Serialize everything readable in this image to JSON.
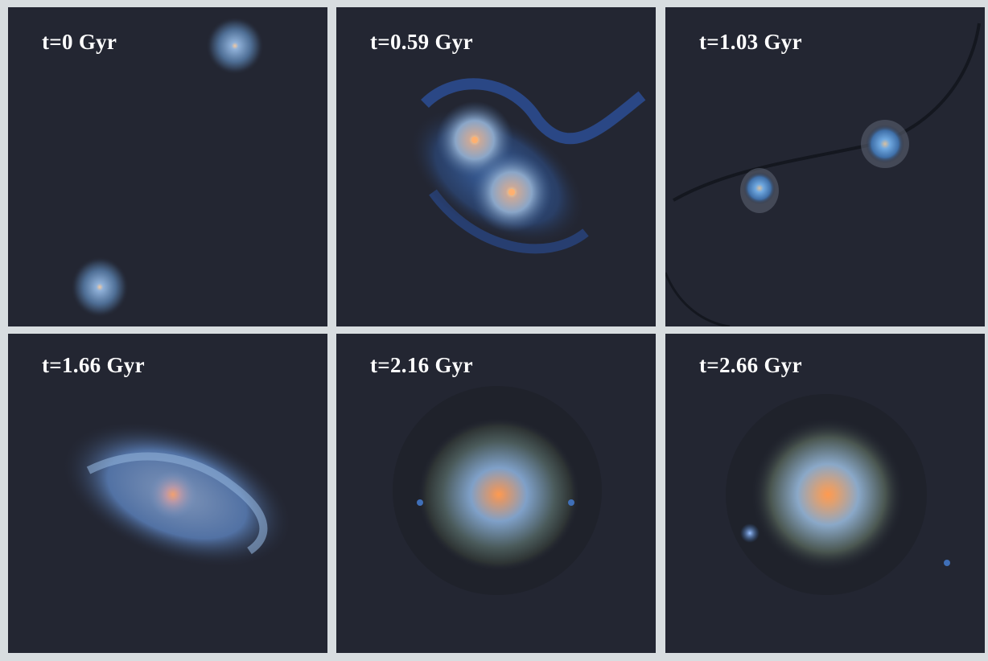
{
  "panels": [
    {
      "label": "t=0 Gyr"
    },
    {
      "label": "t=0.59 Gyr"
    },
    {
      "label": "t=1.03 Gyr"
    },
    {
      "label": "t=1.66 Gyr"
    },
    {
      "label": "t=2.16 Gyr"
    },
    {
      "label": "t=2.66 Gyr"
    }
  ],
  "colors": {
    "background": "#232632",
    "border": "#d8dde0",
    "disk_blue": "#5a8fd0",
    "core_orange": "#f0a060"
  }
}
